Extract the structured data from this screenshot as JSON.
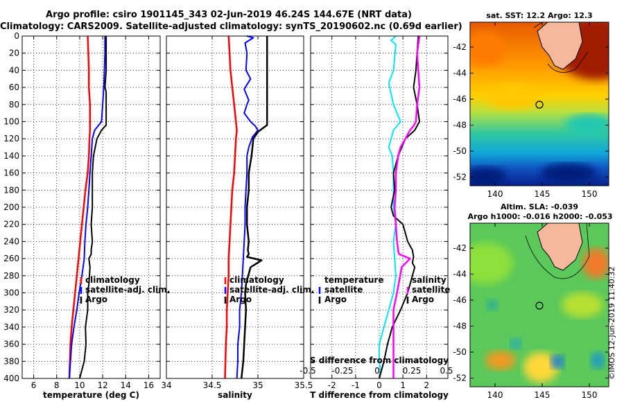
{
  "header": {
    "line1": "Argo profile: csiro 1901145_343 02-Jun-2019 46.24S 144.67E (NRT data)",
    "line2": "Climatology: CARS2009. Satellite-adjusted climatology: synTS_20190602.nc (0.69d earlier)"
  },
  "maps": {
    "sst_title": "sat. SST: 12.2 Argo: 12.3",
    "sla_title1": "Altim. SLA: -0.039",
    "sla_title2": "Argo h1000: -0.016 h2000: -0.053",
    "lat_ticks": [
      "-42",
      "-44",
      "-46",
      "-48",
      "-50",
      "-52"
    ],
    "lon_ticks": [
      "140",
      "145",
      "150"
    ],
    "float_lon": 144.67,
    "float_lat": -46.24
  },
  "stamp": "©IMOS 12-Jun-2019 11:40:32",
  "chart_data": [
    {
      "type": "line",
      "panel": "temperature",
      "xlabel": "temperature (deg C)",
      "ylabel": "",
      "xlim": [
        5,
        17
      ],
      "ylim": [
        400,
        0
      ],
      "xticks": [
        6,
        8,
        10,
        12,
        14,
        16
      ],
      "xtick_labels": [
        "6",
        "8",
        "10",
        "12",
        "14",
        "16"
      ],
      "yticks": [
        0,
        20,
        40,
        60,
        80,
        100,
        120,
        140,
        160,
        180,
        200,
        220,
        240,
        260,
        280,
        300,
        320,
        340,
        360,
        380,
        400
      ],
      "grid": true,
      "legend": [
        "climatology",
        "satellite-adj. clim.",
        "Argo"
      ],
      "series": [
        {
          "name": "climatology",
          "color": "#ff0000",
          "width": 2.5,
          "x": [
            10.7,
            10.75,
            10.8,
            10.8,
            10.9,
            10.9,
            10.9,
            10.85,
            10.8,
            10.7,
            10.5,
            10.35,
            10.2,
            10.05,
            9.9,
            9.75,
            9.6,
            9.45,
            9.3,
            9.2,
            9.1
          ],
          "y": [
            0,
            20,
            40,
            60,
            80,
            100,
            110,
            120,
            140,
            160,
            180,
            200,
            220,
            240,
            260,
            280,
            300,
            320,
            340,
            360,
            400
          ]
        },
        {
          "name": "satellite-adj. clim.",
          "color": "#0000ff",
          "width": 2,
          "x": [
            12.2,
            12.2,
            12.15,
            12.1,
            12.0,
            11.9,
            11.6,
            11.3,
            11.1,
            11.0,
            10.9,
            10.8,
            10.7,
            10.55,
            10.45,
            10.4,
            10.2,
            9.95,
            9.75,
            9.5,
            9.3,
            9.1
          ],
          "y": [
            0,
            20,
            40,
            60,
            80,
            100,
            105,
            110,
            120,
            140,
            160,
            180,
            200,
            220,
            240,
            260,
            280,
            300,
            320,
            340,
            360,
            400
          ]
        },
        {
          "name": "Argo",
          "color": "#000000",
          "width": 2,
          "x": [
            12.3,
            12.3,
            12.3,
            12.2,
            12.3,
            12.3,
            12.3,
            11.9,
            11.5,
            11.2,
            11.1,
            11.1,
            11.1,
            11.0,
            11.1,
            11.0,
            11.0,
            10.8,
            10.9,
            10.8,
            10.7,
            10.7,
            10.5,
            10.55,
            10.4,
            10.2,
            10.0
          ],
          "y": [
            0,
            20,
            40,
            60,
            65,
            80,
            104,
            110,
            120,
            140,
            160,
            180,
            200,
            220,
            240,
            250,
            255,
            260,
            270,
            290,
            300,
            320,
            340,
            360,
            380,
            390,
            400
          ]
        }
      ]
    },
    {
      "type": "line",
      "panel": "salinity",
      "xlabel": "salinity",
      "ylabel": "",
      "xlim": [
        34,
        35.5
      ],
      "ylim": [
        400,
        0
      ],
      "xticks": [
        34,
        34.5,
        35,
        35.5
      ],
      "xtick_labels": [
        "34",
        "34.5",
        "35",
        "35.5"
      ],
      "grid": true,
      "legend": [
        "climatology",
        "satellite-adj. clim.",
        "Argo"
      ],
      "series": [
        {
          "name": "climatology",
          "color": "#ff0000",
          "width": 2.5,
          "x": [
            34.68,
            34.69,
            34.7,
            34.72,
            34.74,
            34.76,
            34.77,
            34.76,
            34.75,
            34.74,
            34.72,
            34.71,
            34.7,
            34.69,
            34.68,
            34.68,
            34.67,
            34.66,
            34.66,
            34.65,
            34.64
          ],
          "y": [
            0,
            20,
            40,
            60,
            80,
            100,
            110,
            120,
            140,
            160,
            180,
            200,
            220,
            240,
            260,
            280,
            300,
            320,
            340,
            360,
            400
          ]
        },
        {
          "name": "satellite-adj. clim.",
          "color": "#0000ff",
          "width": 2,
          "x": [
            34.88,
            34.95,
            34.86,
            34.88,
            34.87,
            34.92,
            34.85,
            34.9,
            34.88,
            34.85,
            34.92,
            34.97,
            35.0,
            34.94,
            34.9,
            34.88,
            34.88,
            34.87,
            34.86,
            34.86,
            34.85,
            34.84,
            34.83,
            34.82,
            34.8,
            34.8,
            34.78,
            34.78,
            34.77
          ],
          "y": [
            0,
            2,
            8,
            20,
            40,
            50,
            62,
            75,
            80,
            90,
            100,
            105,
            110,
            118,
            130,
            140,
            160,
            180,
            200,
            220,
            240,
            260,
            280,
            300,
            320,
            340,
            360,
            380,
            400
          ]
        },
        {
          "name": "Argo",
          "color": "#000000",
          "width": 2.5,
          "x": [
            35.1,
            35.1,
            35.1,
            35.1,
            35.1,
            35.1,
            35.1,
            35.0,
            34.95,
            34.93,
            34.9,
            34.9,
            34.88,
            34.88,
            34.9,
            34.89,
            34.9,
            34.88,
            35.04,
            34.92,
            34.87,
            34.86,
            34.87,
            34.86,
            34.85,
            34.84,
            34.82
          ],
          "y": [
            0,
            20,
            40,
            60,
            80,
            100,
            104,
            112,
            120,
            140,
            160,
            180,
            200,
            220,
            240,
            250,
            255,
            258,
            262,
            270,
            290,
            300,
            320,
            340,
            360,
            380,
            400
          ]
        }
      ]
    },
    {
      "type": "line",
      "panel": "difference",
      "xlabel": "T difference from climatology",
      "xlabel_top": "S difference from climatology",
      "xlim": [
        -2.9,
        2.9
      ],
      "ylim": [
        400,
        0
      ],
      "xticks": [
        -2,
        -1,
        0,
        1,
        2
      ],
      "xtick_labels": [
        "-2",
        "-1",
        "0",
        "1",
        "2"
      ],
      "top_ticks": [
        -0.5,
        -0.25,
        0,
        0.25,
        0.5
      ],
      "top_tick_labels": [
        "-0.5",
        "-0.25",
        "0",
        "0.25",
        "0.5"
      ],
      "grid": true,
      "legend_left": [
        "temperature",
        "satellite",
        "Argo"
      ],
      "legend_right": [
        "salinity",
        "satellite",
        "Argo"
      ],
      "series": [
        {
          "name": "temperature satellite",
          "color": "#00e5ff",
          "width": 2,
          "x": [
            0.7,
            0.5,
            0.7,
            0.6,
            0.4,
            0.6,
            0.9,
            0.6,
            0.5,
            0.4,
            0.55,
            0.6,
            0.6,
            0.6,
            0.7,
            0.6,
            0.65,
            0.7,
            0.6,
            0.4,
            0.2,
            0.0,
            0.0,
            0.0,
            0.05,
            0.0
          ],
          "y": [
            0,
            5,
            10,
            40,
            55,
            80,
            100,
            110,
            120,
            130,
            140,
            160,
            180,
            200,
            220,
            240,
            260,
            280,
            300,
            320,
            340,
            360,
            370,
            380,
            390,
            400
          ]
        },
        {
          "name": "temperature Argo",
          "color": "#000000",
          "width": 2,
          "x": [
            1.65,
            1.6,
            1.55,
            1.45,
            1.6,
            1.7,
            1.5,
            1.1,
            0.8,
            0.6,
            0.65,
            0.5,
            0.6,
            1.0,
            1.2,
            1.4,
            1.45,
            1.4,
            1.5,
            1.4,
            1.2,
            0.9,
            0.55,
            0.35,
            0.2,
            0.0
          ],
          "y": [
            0,
            20,
            40,
            60,
            80,
            100,
            110,
            120,
            140,
            160,
            180,
            200,
            210,
            220,
            240,
            250,
            258,
            265,
            270,
            280,
            300,
            320,
            340,
            360,
            380,
            400
          ]
        },
        {
          "name": "salinity satellite",
          "color": "#ff00ff",
          "width": 2.5,
          "x": [
            1.7,
            1.6,
            1.65,
            1.7,
            1.6,
            1.55,
            1.45,
            1.3,
            1.1,
            0.9,
            0.8,
            0.7,
            0.7,
            0.65,
            0.7,
            0.75,
            0.8,
            0.8,
            0.85,
            0.95,
            1.3,
            0.95,
            0.75,
            0.6,
            0.6,
            0.6,
            0.6,
            0.6
          ],
          "y": [
            0,
            20,
            40,
            60,
            80,
            100,
            105,
            110,
            120,
            130,
            140,
            160,
            180,
            200,
            220,
            240,
            250,
            252,
            255,
            256,
            260,
            270,
            300,
            320,
            340,
            360,
            380,
            400
          ]
        }
      ]
    }
  ]
}
